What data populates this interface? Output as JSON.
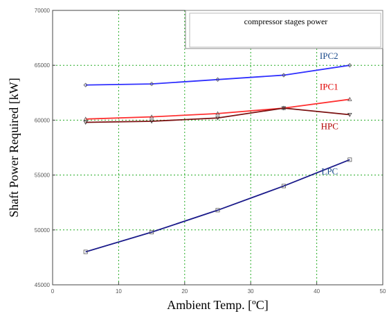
{
  "chart_data": {
    "type": "line",
    "title": "compressor stages power",
    "xlabel": "Ambient Temp. [ºC]",
    "ylabel": "Shaft Power Required [kW]",
    "xlim": [
      0,
      50
    ],
    "ylim": [
      45000,
      70000
    ],
    "grid": true,
    "x_ticks": [
      "0",
      "10",
      "20",
      "30",
      "40",
      "50"
    ],
    "y_ticks": [
      "45000",
      "50000",
      "55000",
      "60000",
      "65000",
      "70000"
    ],
    "x": [
      5,
      15,
      25,
      35,
      45
    ],
    "series": [
      {
        "name": "IPC2",
        "color": "#2f2fff",
        "label_color": "#1a4a8a",
        "marker": "diamond",
        "values": [
          63200,
          63300,
          63700,
          64100,
          65000
        ]
      },
      {
        "name": "IPC1",
        "color": "#ff3030",
        "label_color": "#e00000",
        "marker": "triangle",
        "values": [
          60100,
          60300,
          60600,
          61100,
          61900
        ]
      },
      {
        "name": "HPC",
        "color": "#7a1010",
        "label_color": "#b00000",
        "marker": "triangle-down",
        "values": [
          59800,
          59900,
          60200,
          61100,
          60500
        ]
      },
      {
        "name": "LPC",
        "color": "#1a1a8a",
        "label_color": "#1a4a8a",
        "marker": "square",
        "values": [
          48000,
          49800,
          51800,
          54000,
          56400
        ]
      }
    ]
  }
}
